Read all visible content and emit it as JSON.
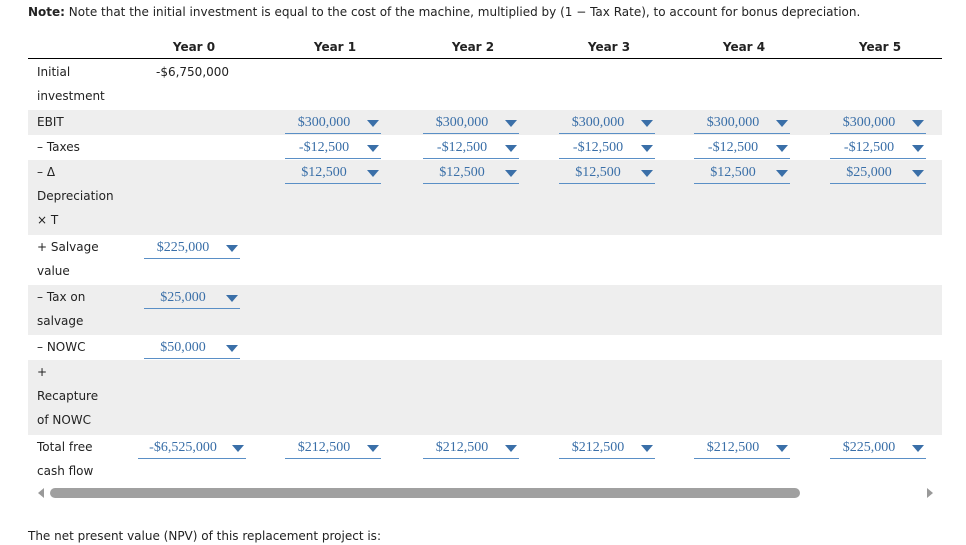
{
  "note": {
    "label": "Note:",
    "text": "Note that the initial investment is equal to the cost of the machine, multiplied by (1 − Tax Rate), to account for bonus depreciation."
  },
  "table": {
    "headers": [
      "Year 0",
      "Year 1",
      "Year 2",
      "Year 3",
      "Year 4",
      "Year 5"
    ],
    "rows": [
      {
        "label": [
          "Initial",
          "investment"
        ],
        "dropdown": false,
        "cells": [
          "-$6,750,000",
          null,
          null,
          null,
          null,
          null
        ]
      },
      {
        "label": [
          "EBIT"
        ],
        "dropdown": true,
        "cells": [
          null,
          "$300,000",
          "$300,000",
          "$300,000",
          "$300,000",
          "$300,000"
        ]
      },
      {
        "label": [
          "– Taxes"
        ],
        "dropdown": true,
        "cells": [
          null,
          "-$12,500",
          "-$12,500",
          "-$12,500",
          "-$12,500",
          "-$12,500"
        ]
      },
      {
        "label": [
          "– Δ",
          "Depreciation",
          "× T"
        ],
        "dropdown": true,
        "cells": [
          null,
          "$12,500",
          "$12,500",
          "$12,500",
          "$12,500",
          "$25,000"
        ]
      },
      {
        "label": [
          "+ Salvage",
          "value"
        ],
        "dropdown": true,
        "cells": [
          "$225,000",
          null,
          null,
          null,
          null,
          null
        ]
      },
      {
        "label": [
          "– Tax on",
          "salvage"
        ],
        "dropdown": true,
        "cells": [
          "$25,000",
          null,
          null,
          null,
          null,
          null
        ]
      },
      {
        "label": [
          "– NOWC"
        ],
        "dropdown": true,
        "cells": [
          "$50,000",
          null,
          null,
          null,
          null,
          null
        ]
      },
      {
        "label": [
          "+",
          "Recapture",
          "of NOWC"
        ],
        "dropdown": true,
        "cells": [
          null,
          null,
          null,
          null,
          null,
          null
        ]
      },
      {
        "label": [
          "Total free",
          "cash flow"
        ],
        "dropdown": true,
        "cells": [
          "-$6,525,000",
          "$212,500",
          "$212,500",
          "$212,500",
          "$212,500",
          "$225,000"
        ]
      }
    ]
  },
  "footer": "The net present value (NPV) of this replacement project is:"
}
